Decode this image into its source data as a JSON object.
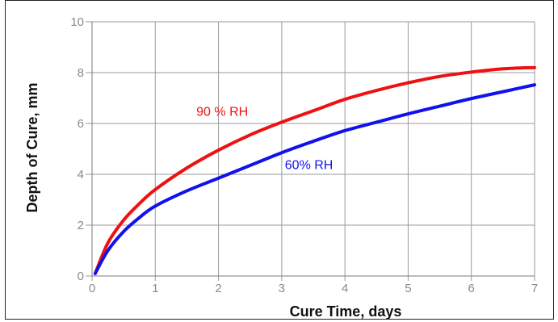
{
  "chart_data": {
    "type": "line",
    "title": "",
    "xlabel": "Cure Time, days",
    "ylabel": "Depth of Cure, mm",
    "xlim": [
      0,
      7
    ],
    "ylim": [
      0,
      10
    ],
    "xticks": [
      "0",
      "1",
      "2",
      "3",
      "4",
      "5",
      "6",
      "7"
    ],
    "yticks": [
      "0",
      "2",
      "4",
      "6",
      "8",
      "10"
    ],
    "grid": true,
    "legend": "none",
    "series": [
      {
        "name": "90 % RH",
        "color": "#ee1111",
        "x": [
          0.05,
          0.25,
          0.5,
          0.75,
          1,
          1.5,
          2,
          2.5,
          3,
          3.5,
          4,
          4.5,
          5,
          5.5,
          6,
          6.5,
          7
        ],
        "y": [
          0.1,
          1.3,
          2.2,
          2.85,
          3.4,
          4.25,
          4.95,
          5.55,
          6.05,
          6.5,
          6.95,
          7.3,
          7.6,
          7.85,
          8.02,
          8.15,
          8.2
        ]
      },
      {
        "name": "60% RH",
        "color": "#1111ee",
        "x": [
          0.05,
          0.25,
          0.5,
          0.75,
          1,
          1.5,
          2,
          2.5,
          3,
          3.5,
          4,
          4.5,
          5,
          5.5,
          6,
          6.5,
          7
        ],
        "y": [
          0.1,
          1.0,
          1.75,
          2.3,
          2.75,
          3.35,
          3.85,
          4.35,
          4.85,
          5.3,
          5.72,
          6.05,
          6.38,
          6.68,
          6.98,
          7.25,
          7.52
        ]
      }
    ],
    "annotations": [
      {
        "text": "90 % RH",
        "x": 1.65,
        "y": 6.3,
        "color": "#ee1111"
      },
      {
        "text": "60% RH",
        "x": 3.05,
        "y": 4.2,
        "color": "#1111ee"
      }
    ]
  }
}
